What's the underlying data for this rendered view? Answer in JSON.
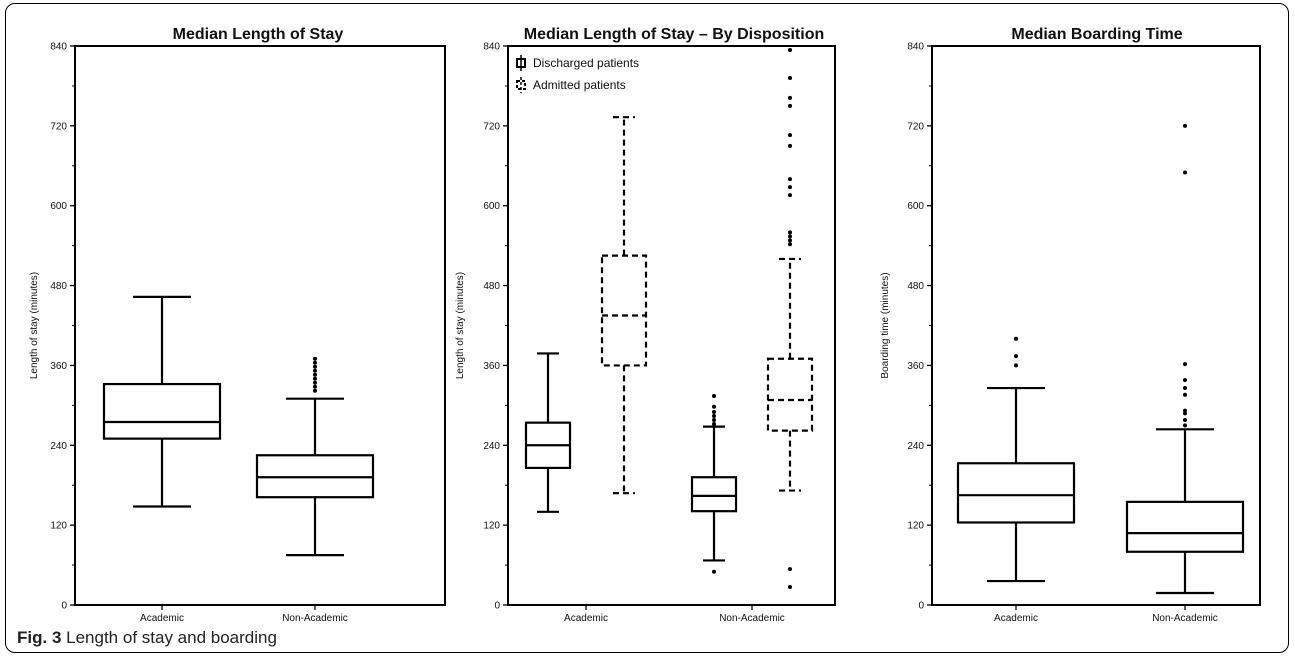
{
  "caption": {
    "label": "Fig. 3",
    "text": "Length of stay and boarding"
  },
  "chart_data": [
    {
      "type": "boxplot",
      "title": "Median Length of Stay",
      "ylabel": "Length of stay (minutes)",
      "ylim": [
        0,
        840
      ],
      "yticks": [
        "0",
        "120",
        "240",
        "360",
        "480",
        "600",
        "720",
        "840"
      ],
      "categories": [
        "Academic",
        "Non-Academic"
      ],
      "boxes": [
        {
          "category": "Academic",
          "style": "solid",
          "min": 148,
          "q1": 250,
          "median": 275,
          "q3": 332,
          "max": 463,
          "outliers": []
        },
        {
          "category": "Non-Academic",
          "style": "solid",
          "min": 75,
          "q1": 162,
          "median": 192,
          "q3": 225,
          "max": 310,
          "outliers": [
            322,
            328,
            334,
            340,
            346,
            352,
            358,
            364,
            370
          ]
        }
      ]
    },
    {
      "type": "boxplot",
      "title": "Median Length of Stay – By Disposition",
      "ylabel": "Length of stay (minutes)",
      "ylim": [
        0,
        840
      ],
      "yticks": [
        "0",
        "120",
        "240",
        "360",
        "480",
        "600",
        "720",
        "840"
      ],
      "categories": [
        "Academic",
        "Non-Academic"
      ],
      "legend": [
        {
          "label": "Discharged patients",
          "style": "solid"
        },
        {
          "label": "Admitted patients",
          "style": "dashed"
        }
      ],
      "legend_position": "top-left",
      "boxes": [
        {
          "category": "Academic",
          "series": "Discharged patients",
          "style": "solid",
          "min": 140,
          "q1": 206,
          "median": 240,
          "q3": 274,
          "max": 378,
          "outliers": []
        },
        {
          "category": "Academic",
          "series": "Admitted patients",
          "style": "dashed",
          "min": 168,
          "q1": 360,
          "median": 435,
          "q3": 525,
          "max": 733,
          "outliers": []
        },
        {
          "category": "Non-Academic",
          "series": "Discharged patients",
          "style": "solid",
          "min": 67,
          "q1": 141,
          "median": 164,
          "q3": 192,
          "max": 268,
          "outliers": [
            50,
            272,
            278,
            284,
            290,
            298,
            314
          ]
        },
        {
          "category": "Non-Academic",
          "series": "Admitted patients",
          "style": "dashed",
          "min": 172,
          "q1": 262,
          "median": 308,
          "q3": 370,
          "max": 520,
          "outliers": [
            27,
            54,
            542,
            548,
            554,
            560,
            616,
            628,
            640,
            690,
            706,
            750,
            762,
            792,
            834
          ]
        }
      ]
    },
    {
      "type": "boxplot",
      "title": "Median Boarding Time",
      "ylabel": "Boarding time (minutes)",
      "ylim": [
        0,
        840
      ],
      "yticks": [
        "0",
        "120",
        "240",
        "360",
        "480",
        "600",
        "720",
        "840"
      ],
      "categories": [
        "Academic",
        "Non-Academic"
      ],
      "boxes": [
        {
          "category": "Academic",
          "style": "solid",
          "min": 36,
          "q1": 124,
          "median": 165,
          "q3": 213,
          "max": 326,
          "outliers": [
            360,
            374,
            400
          ]
        },
        {
          "category": "Non-Academic",
          "style": "solid",
          "min": 18,
          "q1": 80,
          "median": 108,
          "q3": 155,
          "max": 264,
          "outliers": [
            270,
            278,
            288,
            292,
            316,
            326,
            338,
            362,
            650,
            720
          ]
        }
      ]
    }
  ]
}
